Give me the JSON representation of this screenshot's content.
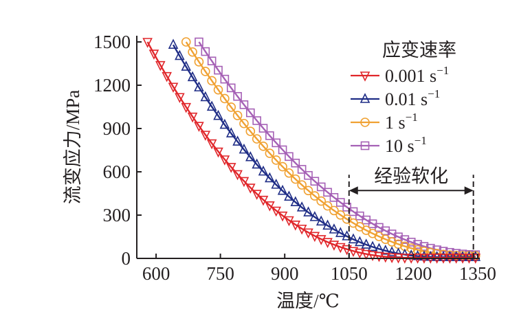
{
  "chart_data": {
    "type": "line",
    "title": "",
    "xlabel": "温度/℃",
    "ylabel": "流变应力/MPa",
    "xlim": [
      555,
      1355
    ],
    "ylim": [
      0,
      1500
    ],
    "xticks": [
      600,
      750,
      900,
      1050,
      1200,
      1350
    ],
    "xtick_labels": [
      "600",
      "750",
      "900",
      "1050",
      "1200",
      "1350"
    ],
    "yticks": [
      0,
      300,
      600,
      900,
      1200,
      1500
    ],
    "ytick_labels": [
      "0",
      "300",
      "600",
      "900",
      "1200",
      "1500"
    ],
    "grid": false,
    "legend": {
      "title": "应变速率",
      "position": "top-right",
      "entries": [
        {
          "label": "0.001 s",
          "sup": "−1"
        },
        {
          "label": "0.01 s",
          "sup": "−1"
        },
        {
          "label": "1 s",
          "sup": "−1"
        },
        {
          "label": "10 s",
          "sup": "−1"
        }
      ]
    },
    "series": [
      {
        "name": "0.001 s⁻¹",
        "color": "#e0262a",
        "marker": "triangle-down",
        "x_start": 580,
        "x_end": 1345,
        "step": 15,
        "peak": 1500,
        "zero_temp": 1190,
        "exponent": 2.25,
        "tail": 5
      },
      {
        "name": "0.01 s⁻¹",
        "color": "#1f2d86",
        "marker": "triangle-up",
        "x_start": 640,
        "x_end": 1345,
        "step": 15,
        "peak": 1480,
        "zero_temp": 1260,
        "exponent": 2.2,
        "tail": 10
      },
      {
        "name": "1 s⁻¹",
        "color": "#f0a132",
        "marker": "circle",
        "x_start": 670,
        "x_end": 1345,
        "step": 15,
        "peak": 1500,
        "zero_temp": 1330,
        "exponent": 2.1,
        "tail": 18
      },
      {
        "name": "10 s⁻¹",
        "color": "#a560b5",
        "marker": "square",
        "x_start": 700,
        "x_end": 1345,
        "step": 15,
        "peak": 1500,
        "zero_temp": 1355,
        "exponent": 2.0,
        "tail": 25
      }
    ],
    "annotations": [
      {
        "text": "经验软化",
        "x_from": 1050,
        "x_to": 1340,
        "y": 470,
        "dashed_from_y": 0,
        "dashed_to_y": 580
      }
    ]
  }
}
